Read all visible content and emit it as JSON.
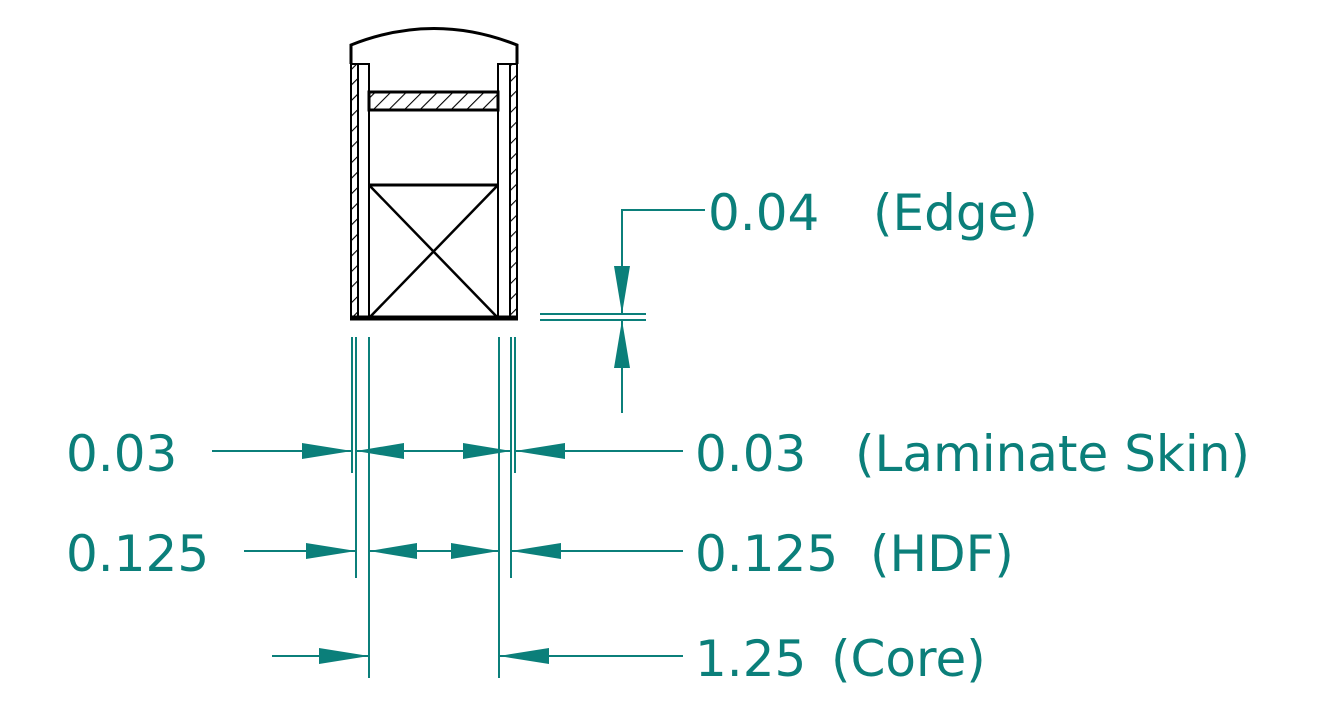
{
  "colors": {
    "dimension": "#0b7f7a",
    "object": "#000000",
    "background": "#ffffff"
  },
  "dimensions": {
    "edge": {
      "value": "0.04",
      "label": "(Edge)"
    },
    "laminate_left": {
      "value": "0.03"
    },
    "laminate_right": {
      "value": "0.03",
      "label": "(Laminate Skin)"
    },
    "hdf_left": {
      "value": "0.125"
    },
    "hdf_right": {
      "value": "0.125",
      "label": "(HDF)"
    },
    "core": {
      "value": "1.25",
      "label": "(Core)"
    }
  }
}
